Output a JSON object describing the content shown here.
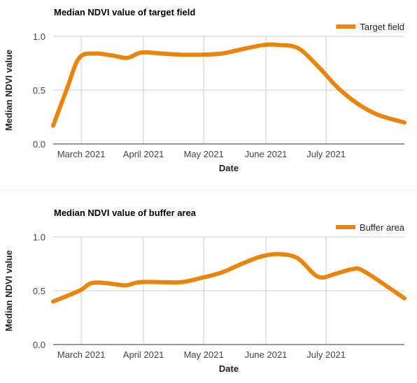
{
  "colors": {
    "series": "#E8850C",
    "grid": "#CCCCCC",
    "baseline": "#333333",
    "separator": "#EEEEEE"
  },
  "chart_data": [
    {
      "type": "line",
      "title": "Median NDVI value of target field",
      "xlabel": "Date",
      "ylabel": "Median NDVI value",
      "ylim": [
        0,
        1.0
      ],
      "yticks": [
        "0.0",
        "0.5",
        "1.0"
      ],
      "xticks": [
        {
          "date": "2021-03-01",
          "label": "March 2021"
        },
        {
          "date": "2021-04-01",
          "label": "April 2021"
        },
        {
          "date": "2021-05-01",
          "label": "May 2021"
        },
        {
          "date": "2021-06-01",
          "label": "June 2021"
        },
        {
          "date": "2021-07-01",
          "label": "July 2021"
        }
      ],
      "xlim": [
        "2021-02-15",
        "2021-08-09"
      ],
      "grid": true,
      "legend_position": "top-right",
      "series": [
        {
          "name": "Target field",
          "points": [
            {
              "x": "2021-02-15",
              "y": 0.17
            },
            {
              "x": "2021-02-22",
              "y": 0.52
            },
            {
              "x": "2021-02-28",
              "y": 0.8
            },
            {
              "x": "2021-03-08",
              "y": 0.84
            },
            {
              "x": "2021-03-17",
              "y": 0.82
            },
            {
              "x": "2021-03-24",
              "y": 0.8
            },
            {
              "x": "2021-03-31",
              "y": 0.85
            },
            {
              "x": "2021-04-10",
              "y": 0.84
            },
            {
              "x": "2021-04-20",
              "y": 0.83
            },
            {
              "x": "2021-04-30",
              "y": 0.83
            },
            {
              "x": "2021-05-10",
              "y": 0.84
            },
            {
              "x": "2021-05-20",
              "y": 0.88
            },
            {
              "x": "2021-05-31",
              "y": 0.92
            },
            {
              "x": "2021-06-07",
              "y": 0.92
            },
            {
              "x": "2021-06-17",
              "y": 0.89
            },
            {
              "x": "2021-06-27",
              "y": 0.72
            },
            {
              "x": "2021-07-07",
              "y": 0.52
            },
            {
              "x": "2021-07-17",
              "y": 0.37
            },
            {
              "x": "2021-07-27",
              "y": 0.27
            },
            {
              "x": "2021-08-09",
              "y": 0.2
            }
          ]
        }
      ]
    },
    {
      "type": "line",
      "title": "Median NDVI value of buffer area",
      "xlabel": "Date",
      "ylabel": "Median NDVI value",
      "ylim": [
        0,
        1.0
      ],
      "yticks": [
        "0.0",
        "0.5",
        "1.0"
      ],
      "xticks": [
        {
          "date": "2021-03-01",
          "label": "March 2021"
        },
        {
          "date": "2021-04-01",
          "label": "April 2021"
        },
        {
          "date": "2021-05-01",
          "label": "May 2021"
        },
        {
          "date": "2021-06-01",
          "label": "June 2021"
        },
        {
          "date": "2021-07-01",
          "label": "July 2021"
        }
      ],
      "xlim": [
        "2021-02-15",
        "2021-08-09"
      ],
      "grid": true,
      "legend_position": "top-right",
      "series": [
        {
          "name": "Buffer area",
          "points": [
            {
              "x": "2021-02-15",
              "y": 0.4
            },
            {
              "x": "2021-02-28",
              "y": 0.5
            },
            {
              "x": "2021-03-06",
              "y": 0.57
            },
            {
              "x": "2021-03-14",
              "y": 0.57
            },
            {
              "x": "2021-03-23",
              "y": 0.55
            },
            {
              "x": "2021-03-30",
              "y": 0.58
            },
            {
              "x": "2021-04-10",
              "y": 0.58
            },
            {
              "x": "2021-04-20",
              "y": 0.58
            },
            {
              "x": "2021-04-30",
              "y": 0.62
            },
            {
              "x": "2021-05-10",
              "y": 0.67
            },
            {
              "x": "2021-05-20",
              "y": 0.75
            },
            {
              "x": "2021-05-30",
              "y": 0.82
            },
            {
              "x": "2021-06-08",
              "y": 0.84
            },
            {
              "x": "2021-06-17",
              "y": 0.8
            },
            {
              "x": "2021-06-27",
              "y": 0.63
            },
            {
              "x": "2021-07-06",
              "y": 0.66
            },
            {
              "x": "2021-07-14",
              "y": 0.7
            },
            {
              "x": "2021-07-20",
              "y": 0.68
            },
            {
              "x": "2021-08-09",
              "y": 0.43
            }
          ]
        }
      ]
    }
  ]
}
